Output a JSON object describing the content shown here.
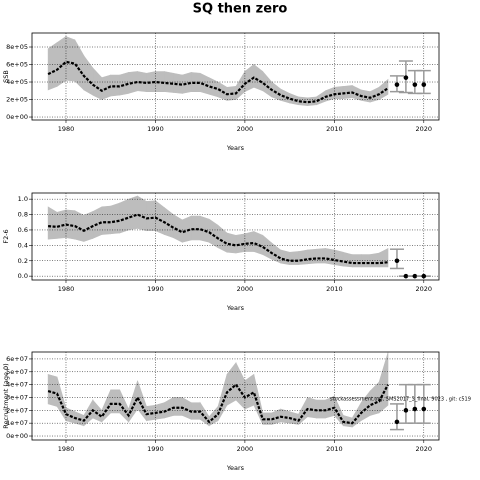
{
  "title": "SQ then zero",
  "chart_data": [
    {
      "type": "line-band",
      "ylabel": "SSB",
      "xlabel": "Years",
      "xlim": [
        1976.2,
        2021.7
      ],
      "xticks": [
        1980,
        1990,
        2000,
        2010,
        2020
      ],
      "ylim": [
        -34000,
        960000
      ],
      "yticks": [
        {
          "value": 0,
          "label": "0e+00"
        },
        {
          "value": 200000,
          "label": "2e+05"
        },
        {
          "value": 400000,
          "label": "4e+05"
        },
        {
          "value": 600000,
          "label": "6e+05"
        },
        {
          "value": 800000,
          "label": "8e+05"
        }
      ],
      "grid": true,
      "color": "#000000",
      "band_color": "#bdbdbd",
      "x": [
        1978,
        1979,
        1980,
        1981,
        1982,
        1983,
        1984,
        1985,
        1986,
        1987,
        1988,
        1989,
        1990,
        1991,
        1992,
        1993,
        1994,
        1995,
        1996,
        1997,
        1998,
        1999,
        2000,
        2001,
        2002,
        2003,
        2004,
        2005,
        2006,
        2007,
        2008,
        2009,
        2010,
        2011,
        2012,
        2013,
        2014,
        2015,
        2016
      ],
      "values": [
        490000,
        540000,
        630000,
        610000,
        470000,
        370000,
        300000,
        350000,
        350000,
        380000,
        400000,
        390000,
        400000,
        390000,
        380000,
        370000,
        390000,
        390000,
        350000,
        320000,
        260000,
        270000,
        380000,
        450000,
        390000,
        310000,
        250000,
        210000,
        180000,
        170000,
        180000,
        230000,
        260000,
        270000,
        280000,
        240000,
        220000,
        260000,
        330000
      ],
      "lower": [
        310000,
        350000,
        420000,
        410000,
        310000,
        250000,
        200000,
        240000,
        250000,
        270000,
        300000,
        290000,
        290000,
        290000,
        280000,
        270000,
        290000,
        290000,
        260000,
        230000,
        190000,
        200000,
        290000,
        340000,
        300000,
        230000,
        190000,
        160000,
        140000,
        130000,
        140000,
        180000,
        210000,
        210000,
        220000,
        190000,
        170000,
        200000,
        260000
      ],
      "upper": [
        780000,
        850000,
        920000,
        880000,
        700000,
        560000,
        450000,
        480000,
        480000,
        510000,
        520000,
        500000,
        520000,
        520000,
        500000,
        480000,
        510000,
        500000,
        450000,
        400000,
        340000,
        350000,
        520000,
        600000,
        520000,
        400000,
        320000,
        270000,
        230000,
        220000,
        230000,
        300000,
        340000,
        350000,
        360000,
        310000,
        290000,
        340000,
        430000
      ],
      "projection": {
        "x": [
          2017,
          2018,
          2019,
          2020
        ],
        "values": [
          370000,
          450000,
          370000,
          370000
        ],
        "lower": [
          290000,
          280000,
          270000,
          270000
        ],
        "upper": [
          470000,
          640000,
          530000,
          530000
        ]
      }
    },
    {
      "type": "line-band",
      "ylabel": "F2-6",
      "xlabel": "Years",
      "xlim": [
        1976.2,
        2021.7
      ],
      "xticks": [
        1980,
        1990,
        2000,
        2010,
        2020
      ],
      "ylim": [
        -0.05,
        1.08
      ],
      "yticks": [
        {
          "value": 0,
          "label": "0.0"
        },
        0.2,
        0.4,
        0.6,
        0.8,
        {
          "value": 1,
          "label": "1.0"
        }
      ],
      "grid": true,
      "color": "#000000",
      "band_color": "#bdbdbd",
      "x": [
        1978,
        1979,
        1980,
        1981,
        1982,
        1983,
        1984,
        1985,
        1986,
        1987,
        1988,
        1989,
        1990,
        1991,
        1992,
        1993,
        1994,
        1995,
        1996,
        1997,
        1998,
        1999,
        2000,
        2001,
        2002,
        2003,
        2004,
        2005,
        2006,
        2007,
        2008,
        2009,
        2010,
        2011,
        2012,
        2013,
        2014,
        2015,
        2016
      ],
      "values": [
        0.65,
        0.64,
        0.67,
        0.65,
        0.59,
        0.65,
        0.7,
        0.7,
        0.72,
        0.76,
        0.8,
        0.75,
        0.76,
        0.7,
        0.63,
        0.57,
        0.61,
        0.61,
        0.57,
        0.49,
        0.42,
        0.4,
        0.42,
        0.43,
        0.38,
        0.3,
        0.23,
        0.2,
        0.2,
        0.22,
        0.23,
        0.23,
        0.21,
        0.19,
        0.17,
        0.17,
        0.17,
        0.17,
        0.18
      ],
      "lower": [
        0.48,
        0.49,
        0.5,
        0.48,
        0.45,
        0.49,
        0.54,
        0.55,
        0.56,
        0.6,
        0.62,
        0.59,
        0.59,
        0.54,
        0.5,
        0.44,
        0.47,
        0.47,
        0.44,
        0.37,
        0.31,
        0.3,
        0.32,
        0.32,
        0.28,
        0.22,
        0.17,
        0.15,
        0.15,
        0.16,
        0.17,
        0.17,
        0.15,
        0.13,
        0.12,
        0.12,
        0.12,
        0.12,
        0.12
      ],
      "upper": [
        0.9,
        0.83,
        0.86,
        0.85,
        0.79,
        0.84,
        0.9,
        0.91,
        0.95,
        1.0,
        1.04,
        0.97,
        0.98,
        0.89,
        0.8,
        0.73,
        0.78,
        0.78,
        0.74,
        0.66,
        0.56,
        0.53,
        0.55,
        0.58,
        0.53,
        0.43,
        0.34,
        0.31,
        0.32,
        0.34,
        0.35,
        0.36,
        0.34,
        0.31,
        0.28,
        0.28,
        0.28,
        0.3,
        0.36
      ],
      "projection": {
        "x": [
          2017,
          2018,
          2019,
          2020
        ],
        "values": [
          0.2,
          0,
          0,
          0
        ],
        "lower": [
          0.1,
          0,
          0,
          0
        ],
        "upper": [
          0.35,
          0,
          0,
          0
        ]
      }
    },
    {
      "type": "line-band",
      "ylabel": "Recruitment (age 0)",
      "xlabel": "Years",
      "annotation": "stockassessment.org, SMS2017_3_final, 9023 , git: c519",
      "xlim": [
        1976.2,
        2021.7
      ],
      "xticks": [
        1980,
        1990,
        2000,
        2010,
        2020
      ],
      "ylim": [
        -3100000,
        65400000
      ],
      "yticks": [
        {
          "value": 0,
          "label": "0e+00"
        },
        {
          "value": 10000000,
          "label": "1e+07"
        },
        {
          "value": 20000000,
          "label": "2e+07"
        },
        {
          "value": 30000000,
          "label": "3e+07"
        },
        {
          "value": 40000000,
          "label": "4e+07"
        },
        {
          "value": 50000000,
          "label": "5e+07"
        },
        {
          "value": 60000000,
          "label": "6e+07"
        }
      ],
      "grid": true,
      "color": "#000000",
      "band_color": "#bdbdbd",
      "x": [
        1978,
        1979,
        1980,
        1981,
        1982,
        1983,
        1984,
        1985,
        1986,
        1987,
        1988,
        1989,
        1990,
        1991,
        1992,
        1993,
        1994,
        1995,
        1996,
        1997,
        1998,
        1999,
        2000,
        2001,
        2002,
        2003,
        2004,
        2005,
        2006,
        2007,
        2008,
        2009,
        2010,
        2011,
        2012,
        2013,
        2014,
        2015,
        2016
      ],
      "values": [
        35000000.0,
        33000000.0,
        17000000.0,
        14000000.0,
        12000000.0,
        20000000.0,
        15000000.0,
        25000000.0,
        25000000.0,
        16000000.0,
        30000000.0,
        17000000.0,
        18000000.0,
        19000000.0,
        22000000.0,
        22000000.0,
        19000000.0,
        19000000.0,
        11000000.0,
        17000000.0,
        34000000.0,
        40000000.0,
        30000000.0,
        34000000.0,
        13000000.0,
        13000000.0,
        15000000.0,
        14000000.0,
        12000000.0,
        21000000.0,
        20000000.0,
        20000000.0,
        22000000.0,
        11000000.0,
        10000000.0,
        18000000.0,
        24000000.0,
        27000000.0,
        40000000.0
      ],
      "lower": [
        25000000.0,
        23000000.0,
        12000000.0,
        10000000.0,
        8000000.0,
        14000000.0,
        11000000.0,
        18000000.0,
        18000000.0,
        11000000.0,
        21000000.0,
        12000000.0,
        13000000.0,
        14000000.0,
        16000000.0,
        16000000.0,
        13000000.0,
        13000000.0,
        8000000.0,
        12000000.0,
        24000000.0,
        28000000.0,
        21000000.0,
        24000000.0,
        9000000.0,
        9000000.0,
        11000000.0,
        10000000.0,
        9000000.0,
        15000000.0,
        14000000.0,
        14000000.0,
        16000000.0,
        8000000.0,
        7000000.0,
        12000000.0,
        16000000.0,
        18000000.0,
        24000000.0
      ],
      "upper": [
        48000000.0,
        46000000.0,
        22000000.0,
        19000000.0,
        16000000.0,
        28000000.0,
        20000000.0,
        36000000.0,
        36000000.0,
        21000000.0,
        43000000.0,
        23000000.0,
        24000000.0,
        26000000.0,
        30000000.0,
        30000000.0,
        26000000.0,
        26000000.0,
        15000000.0,
        23000000.0,
        48000000.0,
        57000000.0,
        43000000.0,
        48000000.0,
        18000000.0,
        18000000.0,
        21000000.0,
        19000000.0,
        17000000.0,
        30000000.0,
        28000000.0,
        28000000.0,
        31000000.0,
        16000000.0,
        14000000.0,
        26000000.0,
        35000000.0,
        42000000.0,
        65000000.0
      ],
      "projection": {
        "x": [
          2017,
          2018,
          2019,
          2020
        ],
        "values": [
          11000000.0,
          20000000.0,
          21000000.0,
          21000000.0
        ],
        "lower": [
          5000000.0,
          10000000.0,
          10000000.0,
          10000000.0
        ],
        "upper": [
          25000000.0,
          40000000.0,
          40000000.0,
          40000000.0
        ]
      }
    }
  ]
}
